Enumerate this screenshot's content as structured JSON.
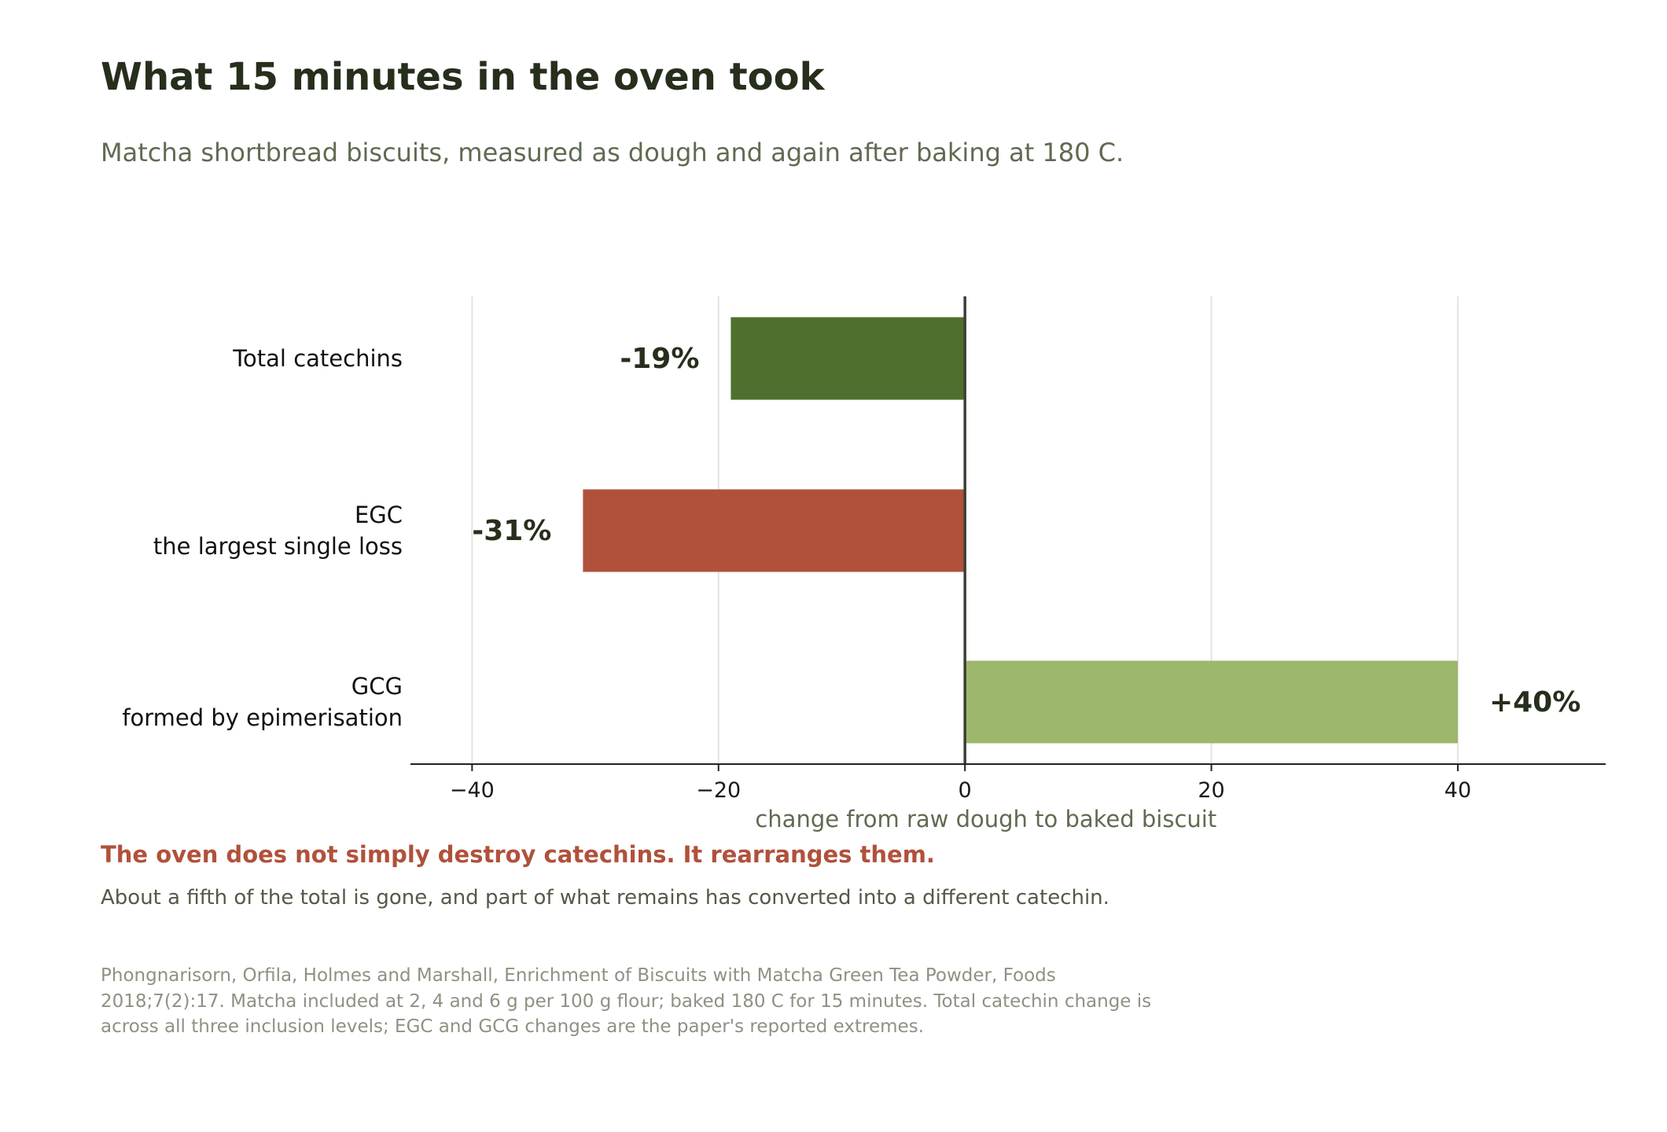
{
  "header": {
    "title": "What 15 minutes in the oven took",
    "subtitle": "Matcha shortbread biscuits, measured as dough and again after baking at 180 C."
  },
  "chart_data": {
    "type": "bar",
    "orientation": "horizontal",
    "categories": [
      {
        "label": "Total catechins",
        "sublabel": ""
      },
      {
        "label": "EGC",
        "sublabel": "the largest single loss"
      },
      {
        "label": "GCG",
        "sublabel": "formed by epimerisation"
      }
    ],
    "values": [
      -19,
      -31,
      40
    ],
    "data_labels": [
      "-19%",
      "-31%",
      "+40%"
    ],
    "colors": [
      "#4f6f2e",
      "#b0513b",
      "#9db76d"
    ],
    "xlabel": "change from raw dough to baked biscuit",
    "xticks": [
      -40,
      -20,
      0,
      20,
      40
    ],
    "xtick_labels": [
      "−40",
      "−20",
      "0",
      "20",
      "40"
    ],
    "xlim": [
      -45,
      52
    ],
    "grid": "vertical"
  },
  "notes": {
    "takeaway": "The oven does not simply destroy catechins. It rearranges them.",
    "detail": "About a fifth of the total is gone, and part of what remains has converted into a different catechin.",
    "source": "Phongnarisorn, Orfila, Holmes and Marshall, Enrichment of Biscuits with Matcha Green Tea Powder, Foods 2018;7(2):17. Matcha included at 2, 4 and 6 g per 100 g flour; baked 180 C for 15 minutes. Total catechin change is across all three inclusion levels; EGC and GCG changes are the paper's reported extremes."
  }
}
